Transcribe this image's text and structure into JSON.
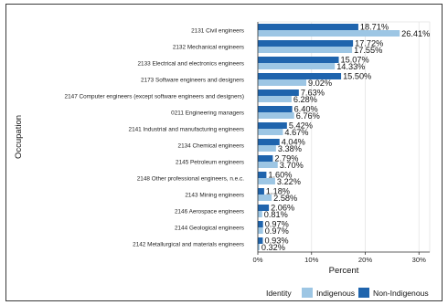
{
  "chart_data": {
    "type": "bar",
    "orientation": "horizontal",
    "categories": [
      "2131 Civil engineers",
      "2132 Mechanical engineers",
      "2133 Electrical and electronics engineers",
      "2173 Software engineers and designers",
      "2147 Computer engineers (except software engineers and designers)",
      "0211 Engineering managers",
      "2141 Industrial and manufacturing engineers",
      "2134 Chemical engineers",
      "2145 Petroleum engineers",
      "2148 Other professional engineers, n.e.c.",
      "2143 Mining engineers",
      "2146 Aerospace engineers",
      "2144 Geological engineers",
      "2142 Metallurgical and materials engineers"
    ],
    "series": [
      {
        "name": "Non-Indigenous",
        "color": "#1f64ad",
        "values": [
          18.71,
          17.72,
          15.07,
          15.5,
          7.63,
          6.4,
          5.42,
          4.04,
          2.79,
          1.6,
          1.18,
          2.06,
          0.97,
          0.93
        ],
        "labels": [
          "18.71%",
          "17.72%",
          "15.07%",
          "15.50%",
          "7.63%",
          "6.40%",
          "5.42%",
          "4.04%",
          "2.79%",
          "1.60%",
          "1.18%",
          "2.06%",
          "0.97%",
          "0.93%"
        ]
      },
      {
        "name": "Indigenous",
        "color": "#9dc6e4",
        "values": [
          26.41,
          17.55,
          14.33,
          9.02,
          6.28,
          6.76,
          4.67,
          3.38,
          3.7,
          3.22,
          2.58,
          0.81,
          0.97,
          0.32
        ],
        "labels": [
          "26.41%",
          "17.55%",
          "14.33%",
          "9.02%",
          "6.28%",
          "6.76%",
          "4.67%",
          "3.38%",
          "3.70%",
          "3.22%",
          "2.58%",
          "0.81%",
          "0.97%",
          "0.32%"
        ]
      }
    ],
    "xlabel": "Percent",
    "ylabel": "Occupation",
    "xlim": [
      0,
      32
    ],
    "xticks": [
      0,
      10,
      20,
      30
    ],
    "xtick_labels": [
      "0%",
      "10%",
      "20%",
      "30%"
    ],
    "legend": {
      "title": "Identity",
      "position": "bottom-right",
      "entries": [
        "Indigenous",
        "Non-Indigenous"
      ]
    },
    "grid": true
  }
}
